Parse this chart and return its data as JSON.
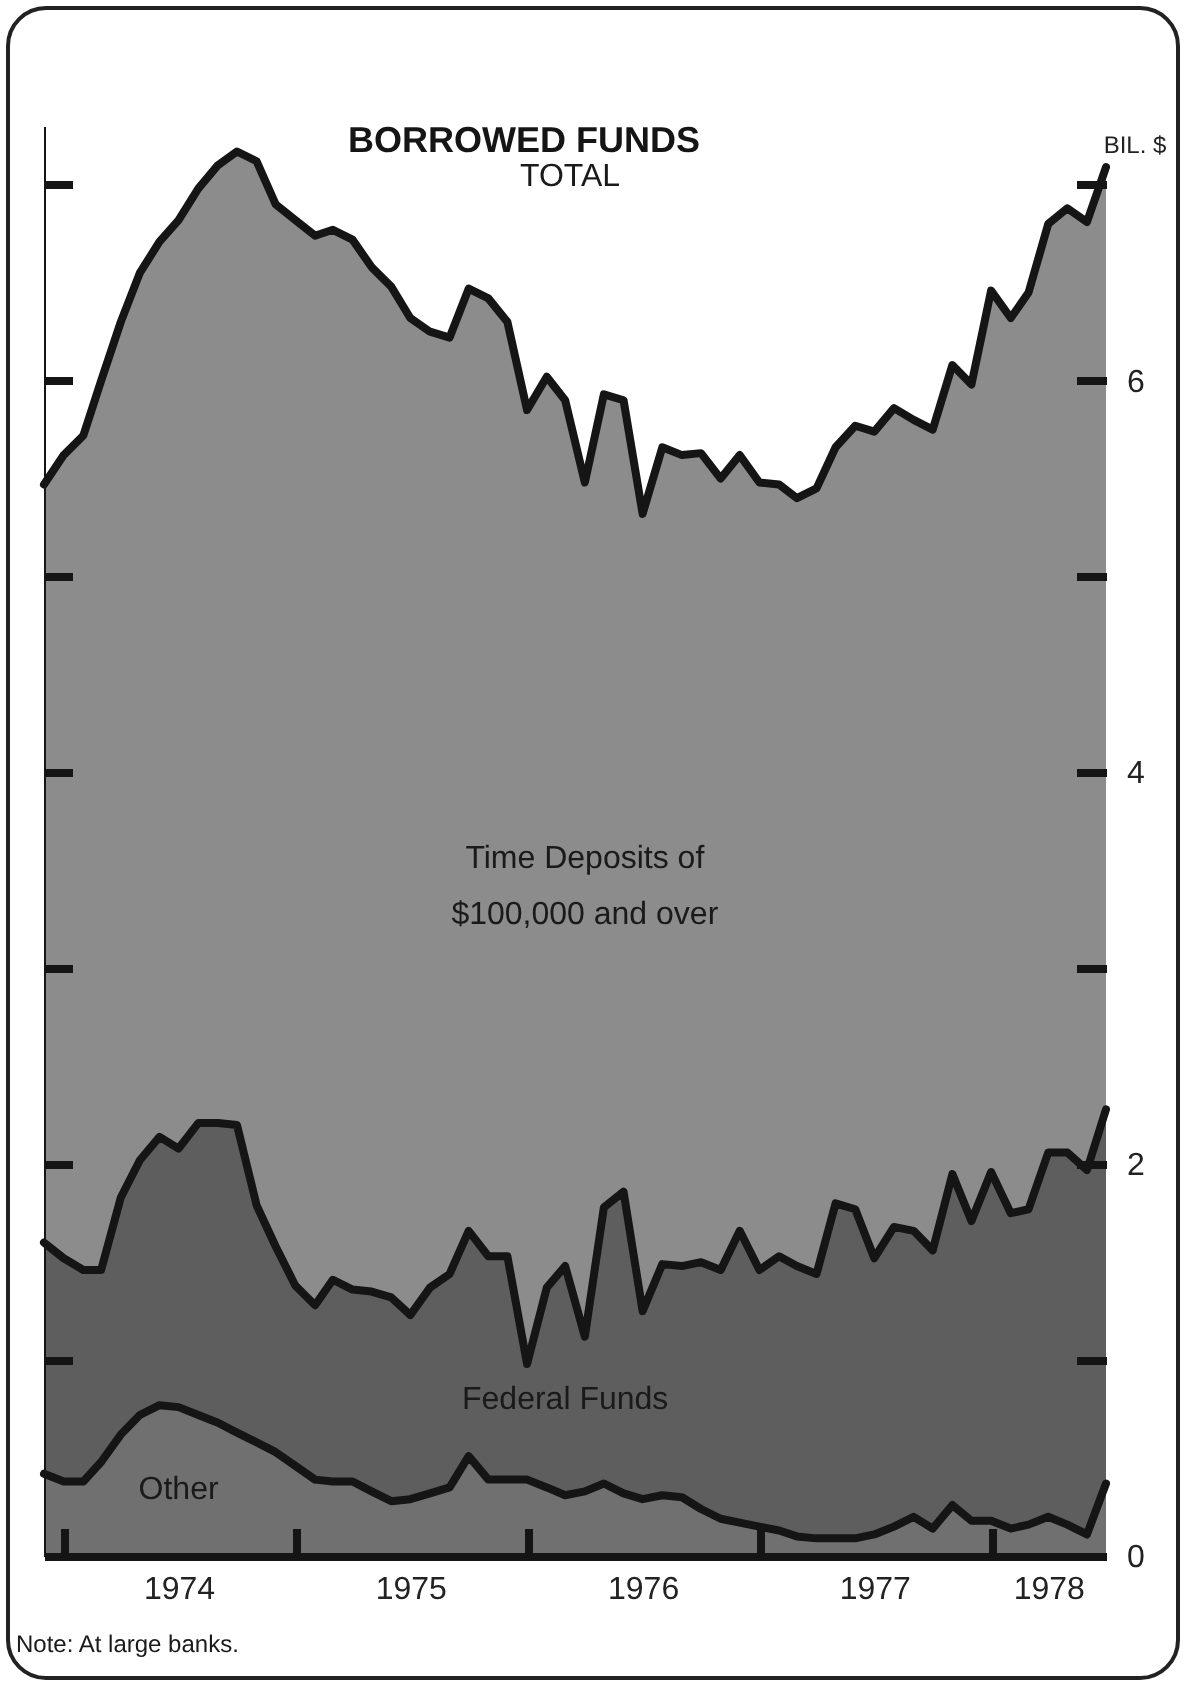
{
  "chart_data": {
    "type": "area",
    "title": "BORROWED FUNDS",
    "ylabel": "BIL. $",
    "annotations": [
      "TOTAL",
      "Note: At large banks."
    ],
    "stacked": true,
    "x": [
      "1973-12",
      "1974-01",
      "1974-02",
      "1974-03",
      "1974-04",
      "1974-05",
      "1974-06",
      "1974-07",
      "1974-08",
      "1974-09",
      "1974-10",
      "1974-11",
      "1974-12",
      "1975-01",
      "1975-02",
      "1975-03",
      "1975-04",
      "1975-05",
      "1975-06",
      "1975-07",
      "1975-08",
      "1975-09",
      "1975-10",
      "1975-11",
      "1975-12",
      "1976-01",
      "1976-02",
      "1976-03",
      "1976-04",
      "1976-05",
      "1976-06",
      "1976-07",
      "1976-08",
      "1976-09",
      "1976-10",
      "1976-11",
      "1976-12",
      "1977-01",
      "1977-02",
      "1977-03",
      "1977-04",
      "1977-05",
      "1977-06",
      "1977-07",
      "1977-08",
      "1977-09",
      "1977-10",
      "1977-11",
      "1977-12",
      "1978-01",
      "1978-02",
      "1978-03",
      "1978-04",
      "1978-05",
      "1978-06",
      "1978-07"
    ],
    "series": [
      {
        "name": "Other",
        "color": "#707070",
        "values": [
          0.42,
          0.38,
          0.38,
          0.48,
          0.62,
          0.72,
          0.77,
          0.76,
          0.72,
          0.68,
          0.63,
          0.58,
          0.53,
          0.46,
          0.39,
          0.38,
          0.38,
          0.33,
          0.28,
          0.29,
          0.32,
          0.35,
          0.51,
          0.39,
          0.39,
          0.39,
          0.35,
          0.31,
          0.33,
          0.37,
          0.32,
          0.29,
          0.31,
          0.3,
          0.24,
          0.19,
          0.17,
          0.15,
          0.13,
          0.1,
          0.09,
          0.09,
          0.09,
          0.11,
          0.15,
          0.2,
          0.14,
          0.26,
          0.18,
          0.18,
          0.14,
          0.16,
          0.2,
          0.16,
          0.11,
          0.37
        ]
      },
      {
        "name": "Federal Funds",
        "color": "#5e5e5e",
        "values": [
          1.18,
          1.14,
          1.08,
          0.98,
          1.21,
          1.3,
          1.37,
          1.32,
          1.49,
          1.53,
          1.57,
          1.21,
          1.05,
          0.92,
          0.89,
          1.03,
          0.98,
          1.02,
          1.04,
          0.94,
          1.05,
          1.09,
          1.15,
          1.14,
          1.14,
          0.59,
          1.02,
          1.17,
          0.79,
          1.41,
          1.54,
          0.96,
          1.18,
          1.18,
          1.26,
          1.27,
          1.49,
          1.31,
          1.4,
          1.38,
          1.35,
          1.71,
          1.68,
          1.41,
          1.53,
          1.46,
          1.42,
          1.69,
          1.53,
          1.78,
          1.61,
          1.61,
          1.86,
          1.9,
          1.86,
          1.91
        ]
      },
      {
        "name": "Time Deposits of $100,000 and over",
        "color": "#8c8c8c",
        "values": [
          3.87,
          4.1,
          4.26,
          4.54,
          4.47,
          4.53,
          4.57,
          4.74,
          4.77,
          4.89,
          4.97,
          5.33,
          5.32,
          5.44,
          5.46,
          5.36,
          5.36,
          5.23,
          5.16,
          5.09,
          4.88,
          4.78,
          4.81,
          4.89,
          4.77,
          4.87,
          4.65,
          4.42,
          4.36,
          4.15,
          4.04,
          4.07,
          4.17,
          4.14,
          4.13,
          4.04,
          3.96,
          4.02,
          3.94,
          3.92,
          4.01,
          3.86,
          4.0,
          4.22,
          4.18,
          4.14,
          4.19,
          4.13,
          4.27,
          4.5,
          4.57,
          4.68,
          4.74,
          4.82,
          4.84,
          4.81
        ]
      }
    ],
    "xlim": [
      "1973-12-01",
      "1978-07-01"
    ],
    "xticks": [
      {
        "value": "1974-01",
        "label": null
      },
      {
        "value": "1974-07",
        "label": "1974"
      },
      {
        "value": "1975-01",
        "label": null
      },
      {
        "value": "1975-07",
        "label": "1975"
      },
      {
        "value": "1976-01",
        "label": null
      },
      {
        "value": "1976-07",
        "label": "1976"
      },
      {
        "value": "1977-01",
        "label": null
      },
      {
        "value": "1977-07",
        "label": "1977"
      },
      {
        "value": "1978-01",
        "label": null
      },
      {
        "value": "1978-04",
        "label": "1978"
      }
    ],
    "ylim": [
      0,
      7.3
    ],
    "yticks": [
      0,
      {
        "value": 1,
        "label": null
      },
      2,
      {
        "value": 3,
        "label": null
      },
      4,
      {
        "value": 5,
        "label": null
      },
      6,
      {
        "value": 7,
        "label": null
      }
    ]
  }
}
